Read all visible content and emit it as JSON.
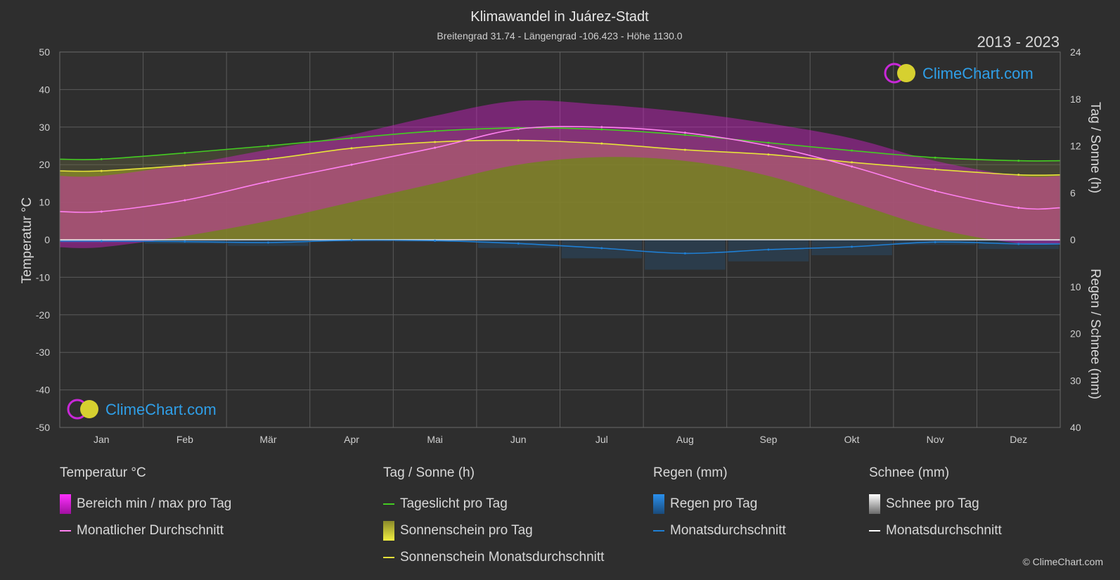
{
  "header": {
    "title": "Klimawandel in Juárez-Stadt",
    "subtitle": "Breitengrad 31.74 - Längengrad -106.423 - Höhe 1130.0",
    "years": "2013 - 2023"
  },
  "brand": {
    "name": "ClimeChart.com",
    "copyright": "© ClimeChart.com"
  },
  "colors": {
    "background": "#2e2e2e",
    "daylight": "#44cc22",
    "sunshine_avg": "#e6e23a",
    "sunshine_fill": "#8f8f1e",
    "temp_range": "#d020c8",
    "temp_avg": "#ff80f0",
    "rain": "#1f7fd4",
    "snow": "#ffffff",
    "brand": "#2f9fe8"
  },
  "chart_data": {
    "type": "line",
    "categories": [
      "Jan",
      "Feb",
      "Mär",
      "Apr",
      "Mai",
      "Jun",
      "Jul",
      "Aug",
      "Sep",
      "Okt",
      "Nov",
      "Dez"
    ],
    "left_axis": {
      "label": "Temperatur °C",
      "ylim": [
        -50,
        50
      ],
      "ticks": [
        50,
        40,
        30,
        20,
        10,
        0,
        -10,
        -20,
        -30,
        -40,
        -50
      ]
    },
    "right_axis_top": {
      "label": "Tag / Sonne (h)",
      "ylim": [
        0,
        24
      ],
      "ticks": [
        24,
        18,
        12,
        6,
        0
      ]
    },
    "right_axis_bottom": {
      "label": "Regen / Schnee (mm)",
      "ylim": [
        0,
        40
      ],
      "ticks": [
        0,
        10,
        20,
        30,
        40
      ]
    },
    "grid": true,
    "series": [
      {
        "name": "Tageslicht pro Tag",
        "axis": "sun_h",
        "values": [
          10.3,
          11.1,
          12.0,
          13.0,
          13.9,
          14.3,
          14.1,
          13.4,
          12.4,
          11.4,
          10.5,
          10.1
        ]
      },
      {
        "name": "Sonnenschein Monatsdurchschnitt",
        "axis": "sun_h",
        "values": [
          8.8,
          9.5,
          10.3,
          11.7,
          12.5,
          12.7,
          12.3,
          11.5,
          10.9,
          9.9,
          9.0,
          8.3
        ]
      },
      {
        "name": "Monatlicher Durchschnitt",
        "axis": "temp_c",
        "values": [
          7.5,
          10.5,
          15.5,
          20.0,
          24.5,
          29.5,
          30.0,
          28.5,
          25.0,
          19.5,
          13.0,
          8.5
        ]
      },
      {
        "name": "Bereich min / max pro Tag",
        "axis": "temp_c",
        "min": [
          -2,
          1,
          5,
          10,
          15,
          20,
          22,
          21,
          17,
          10,
          3,
          -1
        ],
        "max": [
          17,
          20,
          24,
          28,
          33,
          37,
          36,
          34,
          31,
          27,
          21,
          17
        ]
      },
      {
        "name": "Monatsdurchschnitt (Regen)",
        "axis": "rain_mm",
        "values": [
          0.3,
          0.4,
          0.6,
          0.1,
          0.2,
          0.8,
          1.8,
          2.9,
          2.1,
          1.5,
          0.5,
          0.9
        ]
      },
      {
        "name": "Monatsdurchschnitt (Schnee)",
        "axis": "rain_mm",
        "values": [
          0.1,
          0.0,
          0.0,
          0.0,
          0.0,
          0.0,
          0.0,
          0.0,
          0.0,
          0.0,
          0.0,
          0.1
        ]
      }
    ]
  },
  "legend": {
    "groups": [
      {
        "title": "Temperatur °C",
        "items": [
          {
            "label": "Bereich min / max pro Tag",
            "swatch": "box",
            "color": "#d020c8"
          },
          {
            "label": "Monatlicher Durchschnitt",
            "swatch": "line",
            "color": "#ff80f0"
          }
        ]
      },
      {
        "title": "Tag / Sonne (h)",
        "items": [
          {
            "label": "Tageslicht pro Tag",
            "swatch": "line",
            "color": "#44cc22"
          },
          {
            "label": "Sonnenschein pro Tag",
            "swatch": "box",
            "color": "#c8c428"
          },
          {
            "label": "Sonnenschein Monatsdurchschnitt",
            "swatch": "line",
            "color": "#e6e23a"
          }
        ]
      },
      {
        "title": "Regen (mm)",
        "items": [
          {
            "label": "Regen pro Tag",
            "swatch": "box",
            "color": "#1f7fd4"
          },
          {
            "label": "Monatsdurchschnitt",
            "swatch": "line",
            "color": "#1f7fd4"
          }
        ]
      },
      {
        "title": "Schnee (mm)",
        "items": [
          {
            "label": "Schnee pro Tag",
            "swatch": "box",
            "color": "#d8d8d8"
          },
          {
            "label": "Monatsdurchschnitt",
            "swatch": "line",
            "color": "#ffffff"
          }
        ]
      }
    ]
  }
}
